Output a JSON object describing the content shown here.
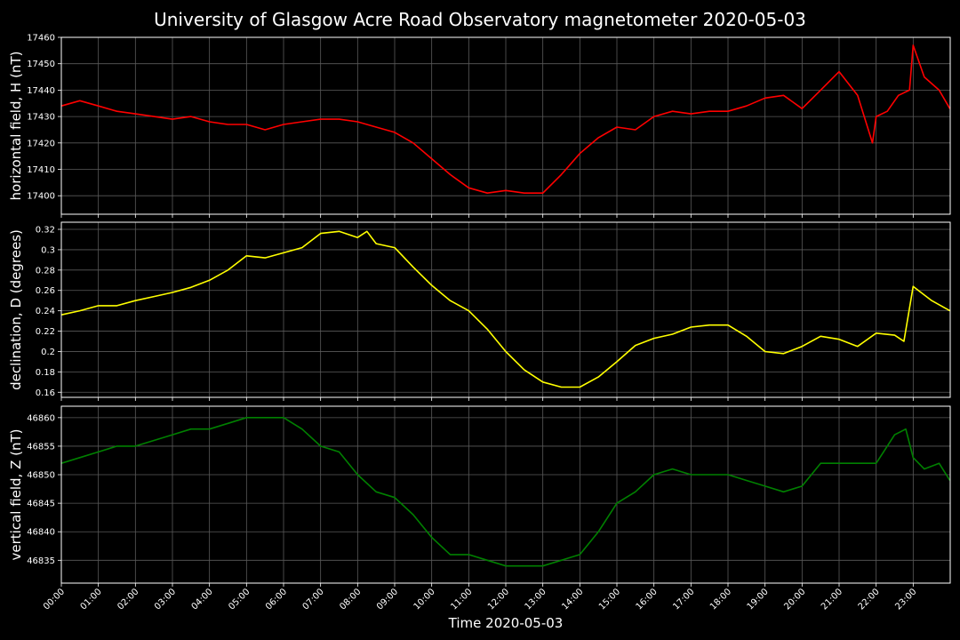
{
  "chart_data": {
    "type": "line",
    "title": "University of Glasgow Acre Road Observatory magnetometer 2020-05-03",
    "xlabel": "Time 2020-05-03",
    "x_range_hours": [
      0,
      24
    ],
    "x_tick_labels": [
      "00:00",
      "01:00",
      "02:00",
      "03:00",
      "04:00",
      "05:00",
      "06:00",
      "07:00",
      "08:00",
      "09:00",
      "10:00",
      "11:00",
      "12:00",
      "13:00",
      "14:00",
      "15:00",
      "16:00",
      "17:00",
      "18:00",
      "19:00",
      "20:00",
      "21:00",
      "22:00",
      "23:00"
    ],
    "grid": true,
    "background": "#000000",
    "panels": [
      {
        "ylabel": "horizontal field, H (nT)",
        "color": "#ff0000",
        "ylim": [
          17393,
          17460
        ],
        "yticks": [
          17400,
          17410,
          17420,
          17430,
          17440,
          17450,
          17460
        ],
        "x": [
          0,
          0.5,
          1,
          1.5,
          2,
          2.5,
          3,
          3.5,
          4,
          4.5,
          5,
          5.5,
          6,
          6.5,
          7,
          7.5,
          8,
          8.5,
          9,
          9.5,
          10,
          10.5,
          11,
          11.5,
          12,
          12.5,
          13,
          13.5,
          14,
          14.5,
          15,
          15.5,
          16,
          16.5,
          17,
          17.5,
          18,
          18.5,
          19,
          19.5,
          20,
          20.5,
          21,
          21.5,
          21.9,
          22,
          22.3,
          22.6,
          22.9,
          23,
          23.3,
          23.7,
          23.99
        ],
        "values": [
          17434,
          17436,
          17434,
          17432,
          17431,
          17430,
          17429,
          17430,
          17428,
          17427,
          17427,
          17425,
          17427,
          17428,
          17429,
          17429,
          17428,
          17426,
          17424,
          17420,
          17414,
          17408,
          17403,
          17401,
          17402,
          17401,
          17401,
          17408,
          17416,
          17422,
          17426,
          17425,
          17430,
          17432,
          17431,
          17432,
          17432,
          17434,
          17437,
          17438,
          17433,
          17440,
          17447,
          17438,
          17420,
          17430,
          17432,
          17438,
          17440,
          17457,
          17445,
          17440,
          17433
        ]
      },
      {
        "ylabel": "declination, D (degrees)",
        "color": "#ffff00",
        "ylim": [
          0.155,
          0.327
        ],
        "yticks": [
          0.16,
          0.18,
          0.2,
          0.22,
          0.24,
          0.26,
          0.28,
          0.3,
          0.32
        ],
        "x": [
          0,
          0.5,
          1,
          1.5,
          2,
          2.5,
          3,
          3.5,
          4,
          4.5,
          5,
          5.5,
          6,
          6.5,
          7,
          7.5,
          8,
          8.25,
          8.5,
          9,
          9.5,
          10,
          10.5,
          11,
          11.5,
          12,
          12.5,
          13,
          13.5,
          14,
          14.5,
          15,
          15.5,
          16,
          16.5,
          17,
          17.5,
          18,
          18.5,
          19,
          19.5,
          20,
          20.5,
          21,
          21.5,
          22,
          22.5,
          22.75,
          23,
          23.5,
          23.99
        ],
        "values": [
          0.236,
          0.24,
          0.245,
          0.245,
          0.25,
          0.254,
          0.258,
          0.263,
          0.27,
          0.28,
          0.294,
          0.292,
          0.297,
          0.302,
          0.316,
          0.318,
          0.312,
          0.318,
          0.306,
          0.302,
          0.283,
          0.265,
          0.25,
          0.24,
          0.222,
          0.2,
          0.182,
          0.17,
          0.165,
          0.165,
          0.175,
          0.19,
          0.206,
          0.213,
          0.217,
          0.224,
          0.226,
          0.226,
          0.215,
          0.2,
          0.198,
          0.205,
          0.215,
          0.212,
          0.205,
          0.218,
          0.216,
          0.21,
          0.264,
          0.25,
          0.24
        ]
      },
      {
        "ylabel": "vertical field, Z (nT)",
        "color": "#008000",
        "ylim": [
          46831,
          46862
        ],
        "yticks": [
          46835,
          46840,
          46845,
          46850,
          46855,
          46860
        ],
        "x": [
          0,
          0.5,
          1,
          1.5,
          2,
          2.5,
          3,
          3.5,
          4,
          4.5,
          5,
          5.5,
          6,
          6.5,
          7,
          7.5,
          8,
          8.5,
          9,
          9.5,
          10,
          10.5,
          11,
          11.5,
          12,
          12.5,
          13,
          13.5,
          14,
          14.5,
          15,
          15.5,
          16,
          16.5,
          17,
          17.5,
          18,
          18.5,
          19,
          19.5,
          20,
          20.5,
          21,
          21.5,
          22,
          22.5,
          22.8,
          23,
          23.3,
          23.7,
          23.99
        ],
        "values": [
          46852,
          46853,
          46854,
          46855,
          46855,
          46856,
          46857,
          46858,
          46858,
          46859,
          46860,
          46860,
          46860,
          46858,
          46855,
          46854,
          46850,
          46847,
          46846,
          46843,
          46839,
          46836,
          46836,
          46835,
          46834,
          46834,
          46834,
          46835,
          46836,
          46840,
          46845,
          46847,
          46850,
          46851,
          46850,
          46850,
          46850,
          46849,
          46848,
          46847,
          46848,
          46852,
          46852,
          46852,
          46852,
          46857,
          46858,
          46853,
          46851,
          46852,
          46849
        ]
      }
    ]
  }
}
